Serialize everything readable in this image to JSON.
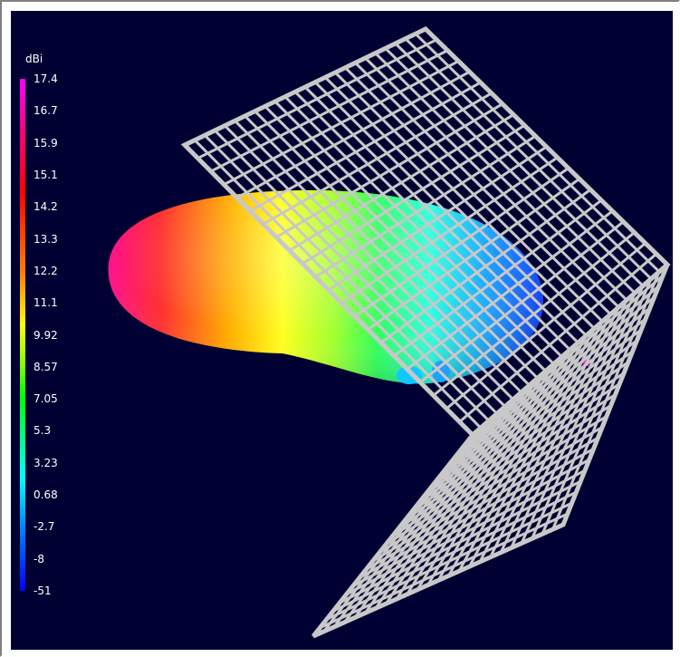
{
  "legend": {
    "unit": "dBi",
    "labels": [
      "17.4",
      "16.7",
      "15.9",
      "15.1",
      "14.2",
      "13.3",
      "12.2",
      "11.1",
      "9.92",
      "8.57",
      "7.05",
      "5.3",
      "3.23",
      "0.68",
      "-2.7",
      "-8",
      "-51"
    ],
    "colors": {
      "max": "#ff00ff",
      "high": "#ff0000",
      "mid": "#ffff00",
      "low_mid": "#00ff00",
      "low": "#00ffff",
      "min": "#0000ff"
    }
  },
  "scene": {
    "background_color": "#000033",
    "reflector_color": "#c8c8c8",
    "objects": [
      "radiation-pattern-lobe",
      "corner-reflector-mesh",
      "feed-element"
    ]
  }
}
